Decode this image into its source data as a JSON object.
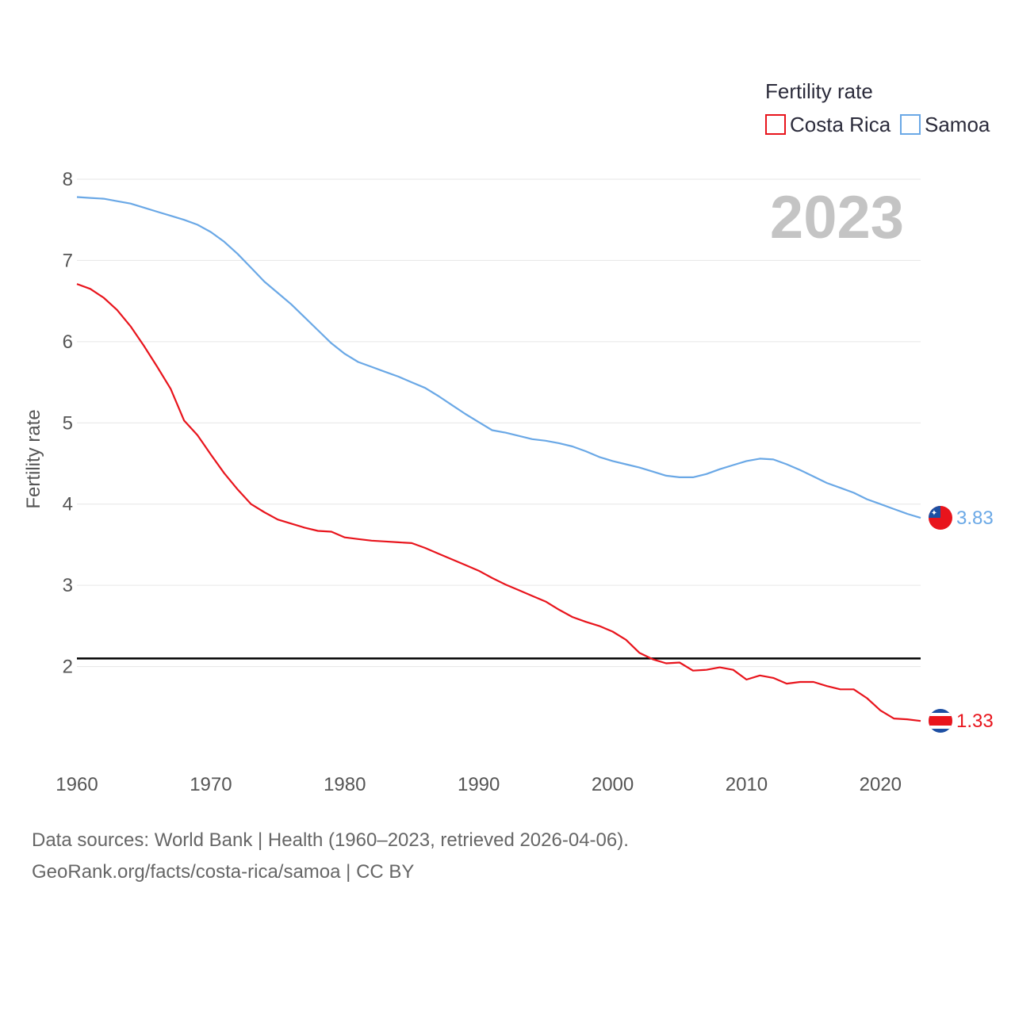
{
  "legend": {
    "title": "Fertility rate",
    "items": [
      {
        "name": "Costa Rica",
        "color": "#e8141c"
      },
      {
        "name": "Samoa",
        "color": "#6aa8e6"
      }
    ]
  },
  "year_label": "2023",
  "footer": {
    "line1": "Data sources: World Bank | Health (1960–2023, retrieved 2026-04-06).",
    "line2": "GeoRank.org/facts/costa-rica/samoa | CC BY"
  },
  "chart_data": {
    "type": "line",
    "title": "",
    "xlabel": "",
    "ylabel": "Fertility rate",
    "xlim": [
      1960,
      2023
    ],
    "ylim": [
      1,
      8
    ],
    "x_ticks": [
      1960,
      1970,
      1980,
      1990,
      2000,
      2010,
      2020
    ],
    "y_ticks": [
      2,
      3,
      4,
      5,
      6,
      7,
      8
    ],
    "reference_line": {
      "y": 2.1,
      "color": "#000000"
    },
    "x": [
      1960,
      1961,
      1962,
      1963,
      1964,
      1965,
      1966,
      1967,
      1968,
      1969,
      1970,
      1971,
      1972,
      1973,
      1974,
      1975,
      1976,
      1977,
      1978,
      1979,
      1980,
      1981,
      1982,
      1983,
      1984,
      1985,
      1986,
      1987,
      1988,
      1989,
      1990,
      1991,
      1992,
      1993,
      1994,
      1995,
      1996,
      1997,
      1998,
      1999,
      2000,
      2001,
      2002,
      2003,
      2004,
      2005,
      2006,
      2007,
      2008,
      2009,
      2010,
      2011,
      2012,
      2013,
      2014,
      2015,
      2016,
      2017,
      2018,
      2019,
      2020,
      2021,
      2022,
      2023
    ],
    "series": [
      {
        "name": "Costa Rica",
        "color": "#e8141c",
        "end_label": "1.33",
        "values": [
          6.71,
          6.65,
          6.54,
          6.39,
          6.19,
          5.95,
          5.69,
          5.42,
          5.03,
          4.85,
          4.61,
          4.38,
          4.18,
          4.0,
          3.9,
          3.81,
          3.76,
          3.71,
          3.67,
          3.66,
          3.59,
          3.57,
          3.55,
          3.54,
          3.53,
          3.52,
          3.46,
          3.39,
          3.32,
          3.25,
          3.18,
          3.09,
          3.01,
          2.94,
          2.87,
          2.8,
          2.7,
          2.61,
          2.55,
          2.5,
          2.43,
          2.33,
          2.17,
          2.09,
          2.04,
          2.05,
          1.95,
          1.96,
          1.99,
          1.96,
          1.84,
          1.89,
          1.86,
          1.79,
          1.81,
          1.81,
          1.76,
          1.72,
          1.72,
          1.61,
          1.46,
          1.36,
          1.35,
          1.33
        ]
      },
      {
        "name": "Samoa",
        "color": "#6aa8e6",
        "end_label": "3.83",
        "values": [
          7.78,
          7.77,
          7.76,
          7.73,
          7.7,
          7.65,
          7.6,
          7.55,
          7.5,
          7.44,
          7.35,
          7.23,
          7.08,
          6.91,
          6.74,
          6.6,
          6.46,
          6.3,
          6.14,
          5.98,
          5.85,
          5.75,
          5.69,
          5.63,
          5.57,
          5.5,
          5.43,
          5.33,
          5.22,
          5.11,
          5.01,
          4.91,
          4.88,
          4.84,
          4.8,
          4.78,
          4.75,
          4.71,
          4.65,
          4.58,
          4.53,
          4.49,
          4.45,
          4.4,
          4.35,
          4.33,
          4.33,
          4.37,
          4.43,
          4.48,
          4.53,
          4.56,
          4.55,
          4.49,
          4.42,
          4.34,
          4.26,
          4.2,
          4.14,
          4.06,
          4.0,
          3.94,
          3.88,
          3.83
        ]
      }
    ]
  }
}
